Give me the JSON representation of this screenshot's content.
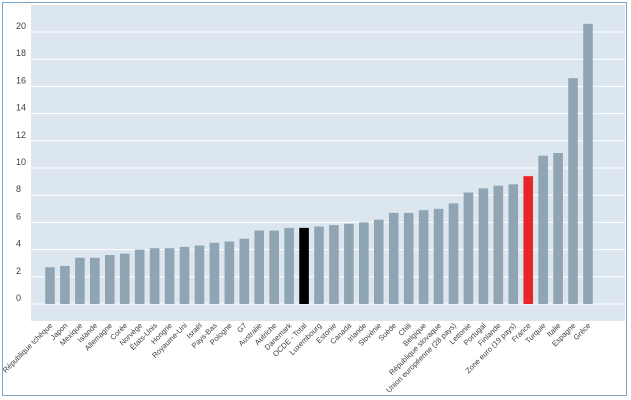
{
  "chart_data": {
    "type": "bar",
    "title": "",
    "xlabel": "",
    "ylabel": "",
    "ylim": [
      0,
      21
    ],
    "yticks": [
      0,
      2,
      4,
      6,
      8,
      10,
      12,
      14,
      16,
      18,
      20
    ],
    "grid": true,
    "legend": "none",
    "colors": {
      "default": "#8fa5b3",
      "highlight_total": "#000000",
      "highlight_france": "#e8262a",
      "france_label": "#e8262a",
      "grid": "#ffffff",
      "plot_background": "#dce6ef"
    },
    "categories": [
      "République tchèque",
      "Japon",
      "Mexique",
      "Islande",
      "Allemagne",
      "Corée",
      "Norvège",
      "États-Unis",
      "Hongrie",
      "Royaume-Uni",
      "Israël",
      "Pays-Bas",
      "Pologne",
      "G7",
      "Australie",
      "Autriche",
      "Danemark",
      "OCDE - Total",
      "Luxembourg",
      "Estonie",
      "Canada",
      "Irlande",
      "Slovénie",
      "Suède",
      "Chili",
      "Belgique",
      "République slovaque",
      "Union européenne (28 pays)",
      "Lettonie",
      "Portugal",
      "Finlande",
      "Zone euro (19 pays)",
      "France",
      "Turquie",
      "Italie",
      "Espagne",
      "Grèce"
    ],
    "values": [
      2.7,
      2.8,
      3.4,
      3.4,
      3.6,
      3.7,
      4.0,
      4.1,
      4.1,
      4.2,
      4.3,
      4.5,
      4.6,
      4.8,
      5.4,
      5.4,
      5.6,
      5.6,
      5.7,
      5.8,
      5.9,
      6.0,
      6.2,
      6.7,
      6.7,
      6.9,
      7.0,
      7.4,
      8.2,
      8.5,
      8.7,
      8.8,
      9.4,
      10.9,
      11.1,
      16.6,
      20.6
    ],
    "highlight": {
      "OCDE - Total": "highlight_total",
      "France": "highlight_france"
    }
  }
}
